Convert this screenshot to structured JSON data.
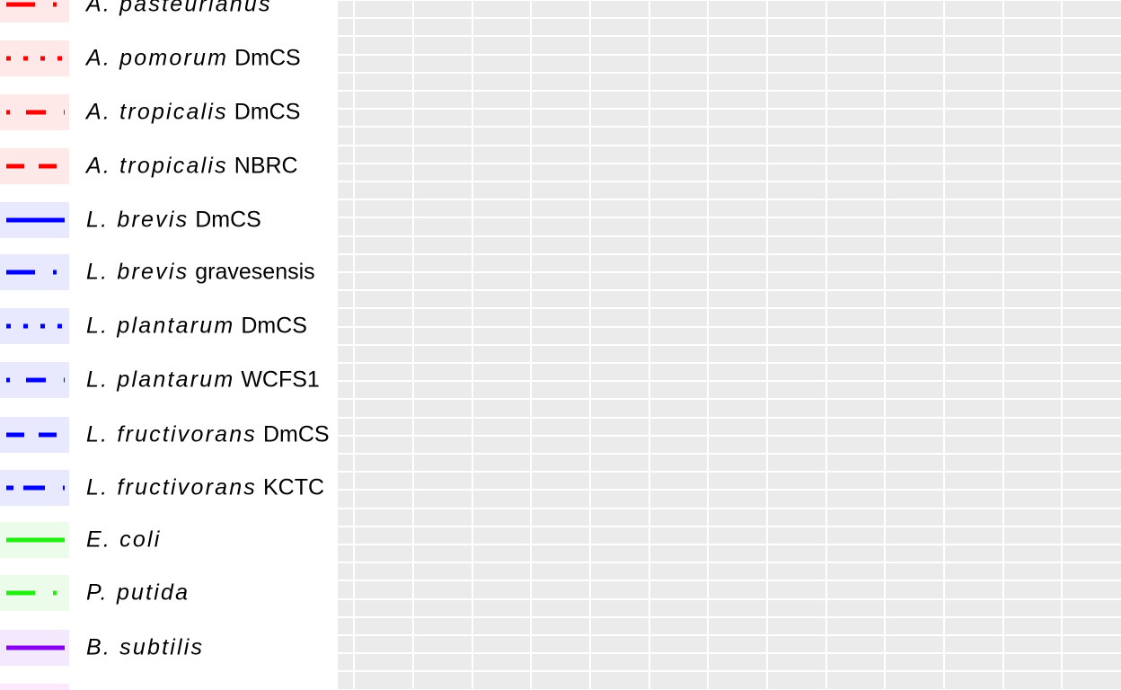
{
  "chart_data": {
    "type": "line",
    "legend_position": "left",
    "grid": true,
    "panel_background": "#EBEBEB",
    "grid_color": "#FFFFFF",
    "series": [
      {
        "species": "A. pasteurianus",
        "strain": "",
        "color": "#FF0000",
        "linetype": "longdash-dot"
      },
      {
        "species": "A. pomorum",
        "strain": "DmCS",
        "color": "#FF0000",
        "linetype": "dotted"
      },
      {
        "species": "A. tropicalis",
        "strain": "DmCS",
        "color": "#FF0000",
        "linetype": "dotdash"
      },
      {
        "species": "A. tropicalis",
        "strain": "NBRC",
        "color": "#FF0000",
        "linetype": "dashed"
      },
      {
        "species": "L. brevis",
        "strain": "DmCS",
        "color": "#0000FF",
        "linetype": "solid"
      },
      {
        "species": "L. brevis",
        "strain": "gravesensis",
        "color": "#0000FF",
        "linetype": "longdash-dot"
      },
      {
        "species": "L. plantarum",
        "strain": "DmCS",
        "color": "#0000FF",
        "linetype": "dotted"
      },
      {
        "species": "L. plantarum",
        "strain": "WCFS1",
        "color": "#0000FF",
        "linetype": "dotdash"
      },
      {
        "species": "L. fructivorans",
        "strain": "DmCS",
        "color": "#0000FF",
        "linetype": "dashed"
      },
      {
        "species": "L. fructivorans",
        "strain": "KCTC",
        "color": "#0000FF",
        "linetype": "shortdash-longdash"
      },
      {
        "species": "E. coli",
        "strain": "",
        "color": "#22EE11",
        "linetype": "solid"
      },
      {
        "species": "P. putida",
        "strain": "",
        "color": "#22EE11",
        "linetype": "longdash-dot"
      },
      {
        "species": "B. subtilis",
        "strain": "",
        "color": "#8800EE",
        "linetype": "solid"
      },
      {
        "species": "",
        "strain": "",
        "color": "#EE00EE",
        "linetype": "solid"
      }
    ]
  }
}
